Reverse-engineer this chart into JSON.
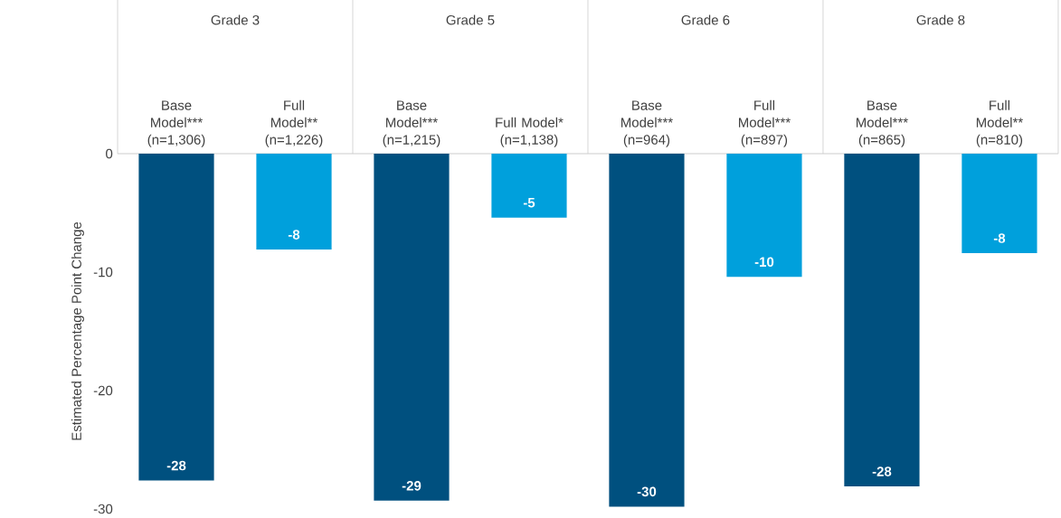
{
  "chart_data": {
    "type": "bar",
    "ylabel": "Estimated Percentage Point Change",
    "categories": [
      "Base Model*** (n=1,306)",
      "Full Model** (n=1,226)",
      "Base Model*** (n=1,215)",
      "Full Model* (n=1,138)",
      "Base Model*** (n=964)",
      "Full Model*** (n=897)",
      "Base Model*** (n=865)",
      "Full Model** (n=810)"
    ],
    "values": [
      -27.6,
      -8.1,
      -29.3,
      -5.4,
      -29.8,
      -10.4,
      -28.1,
      -8.4
    ],
    "value_labels": [
      "-28",
      "-8",
      "-29",
      "-5",
      "-30",
      "-10",
      "-28",
      "-8"
    ],
    "colors": [
      "#00507f",
      "#00a0dc",
      "#00507f",
      "#00a0dc",
      "#00507f",
      "#00a0dc",
      "#00507f",
      "#00a0dc"
    ],
    "annotations": [
      "Grade 3",
      "Grade 5",
      "Grade 6",
      "Grade 8"
    ],
    "ylim": [
      -30,
      0
    ],
    "yticks": [
      0,
      -10,
      -20,
      -30
    ]
  }
}
